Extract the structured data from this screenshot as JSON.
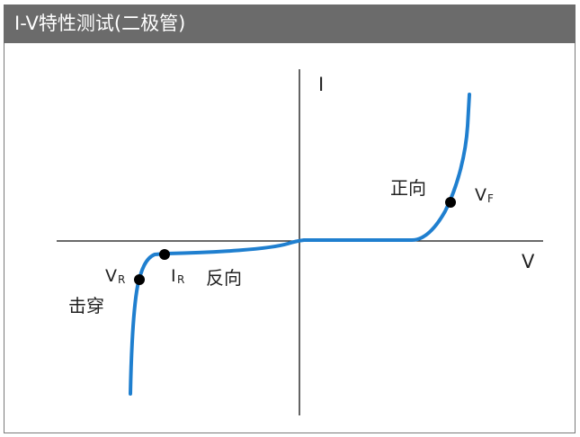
{
  "header": {
    "title": "I-V特性测试(二极管)"
  },
  "diagram": {
    "axis_y_label": "I",
    "axis_x_label": "V",
    "forward_label": "正向",
    "reverse_label": "反向",
    "breakdown_label": "击穿",
    "vf_main": "V",
    "vf_sub": "F",
    "vr_main": "V",
    "vr_sub": "R",
    "ir_main": "I",
    "ir_sub": "R",
    "curve_color": "#1f7fcf",
    "header_color": "#6b6b6b"
  }
}
